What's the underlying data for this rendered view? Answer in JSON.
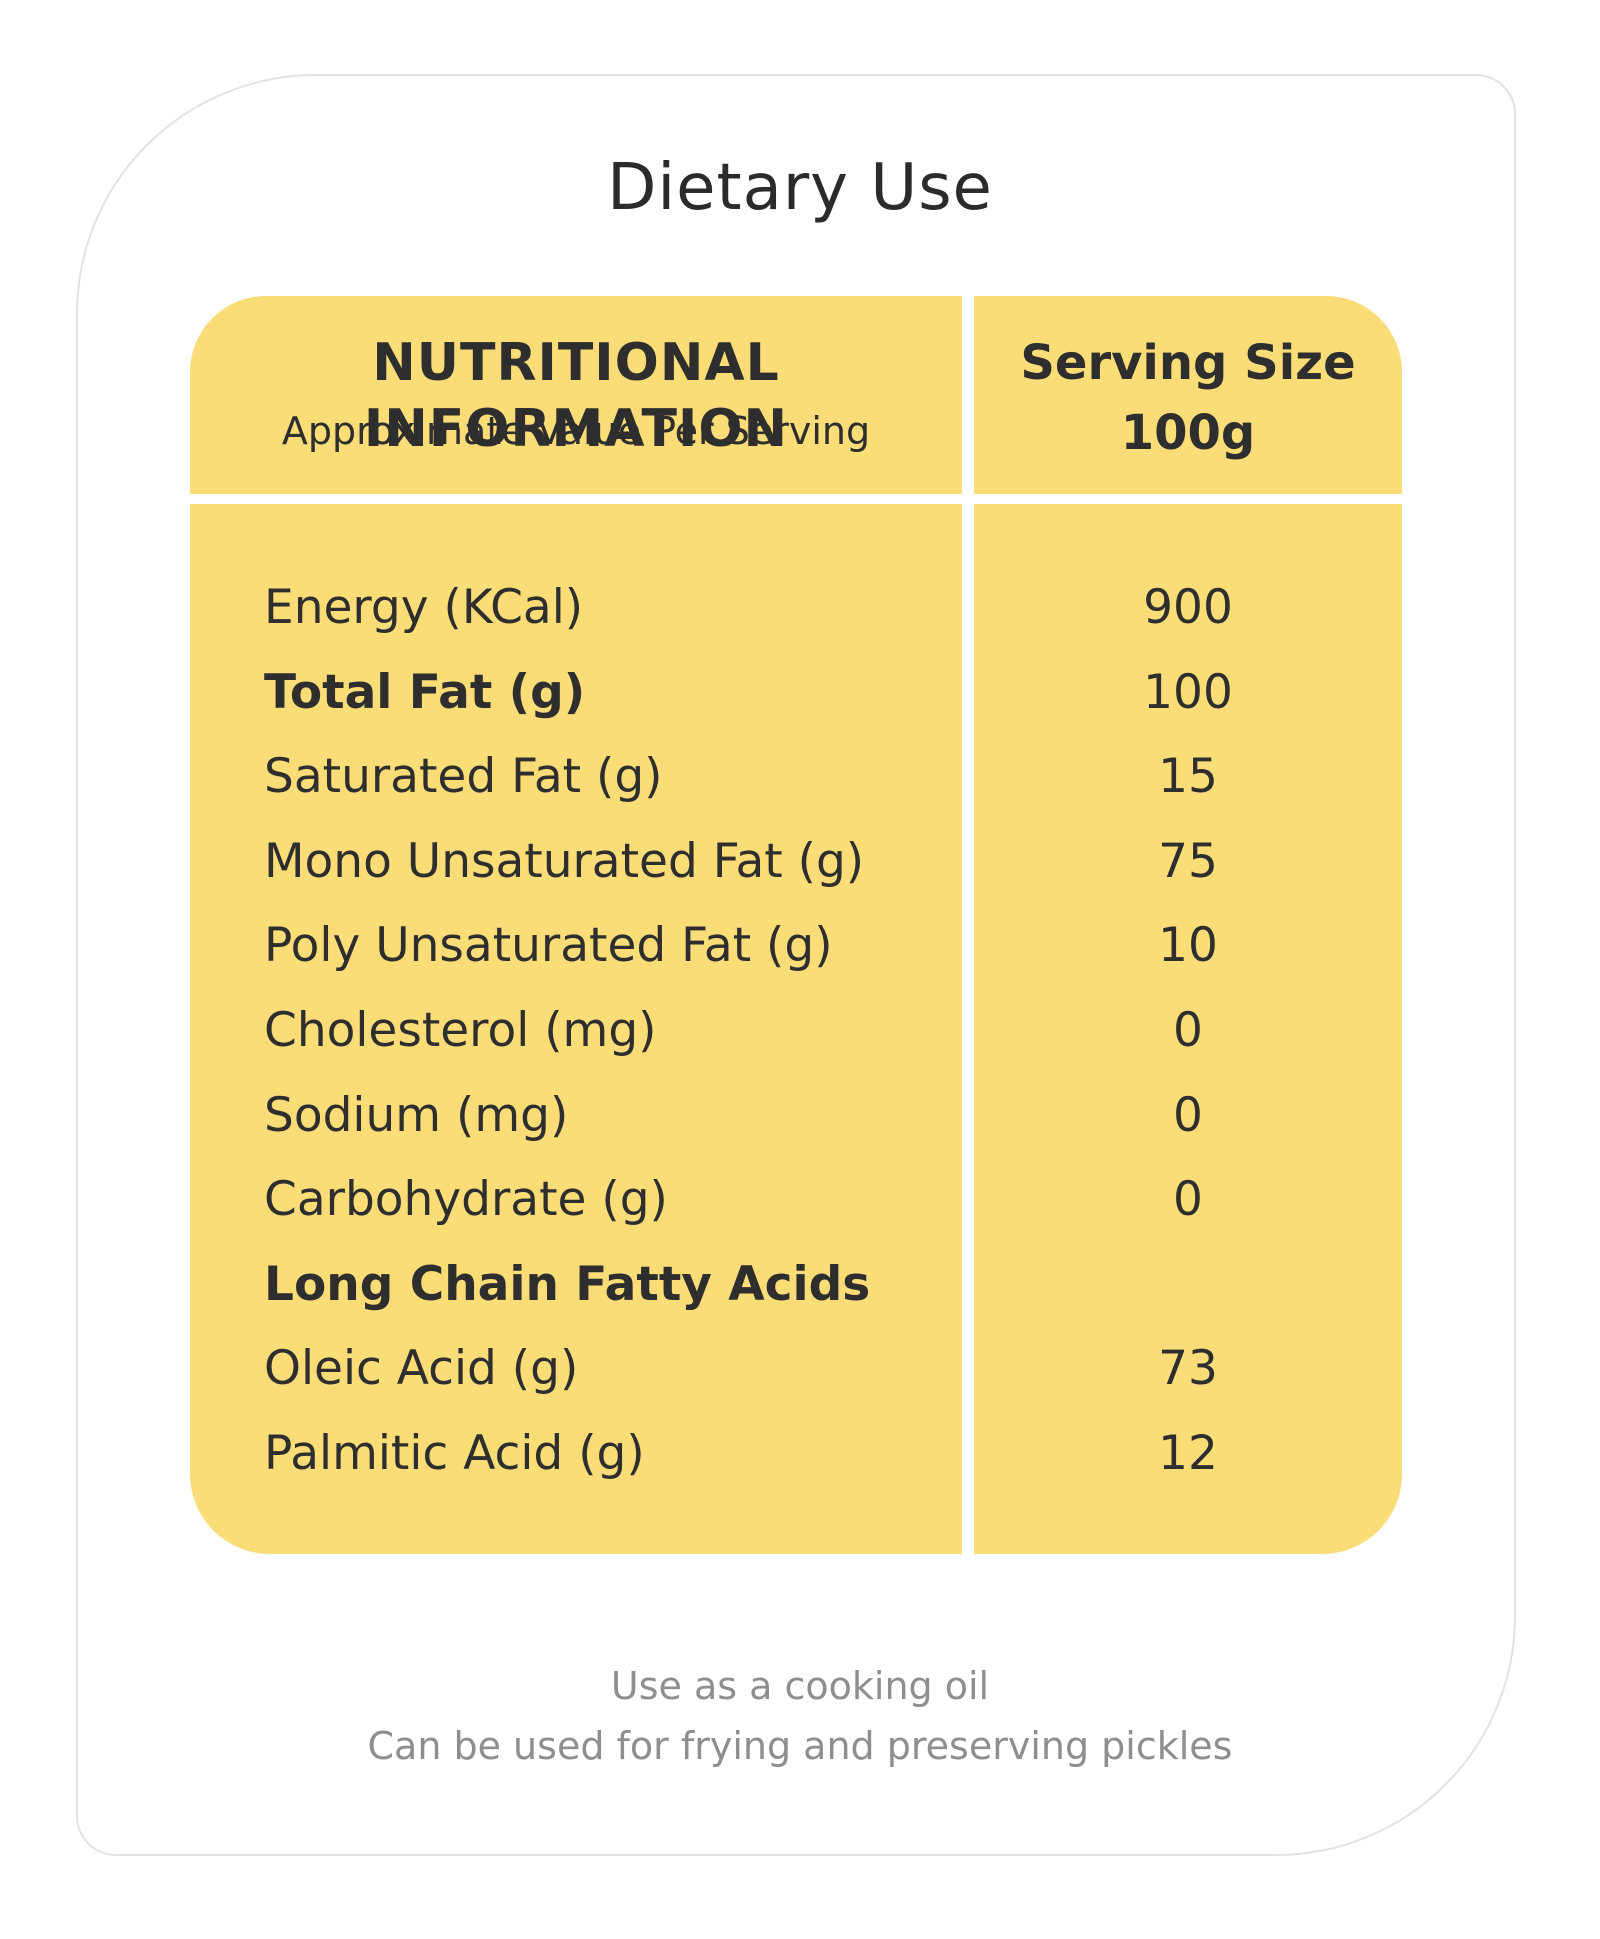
{
  "title": "Dietary Use",
  "header": {
    "left_title": "NUTRITIONAL INFORMATION",
    "left_subtitle": "Approximate Value Per Serving",
    "right_label": "Serving Size",
    "right_value": "100g"
  },
  "rows": [
    {
      "label": "Energy (KCal)",
      "value": "900",
      "bold": false
    },
    {
      "label": "Total Fat (g)",
      "value": "100",
      "bold": true
    },
    {
      "label": "Saturated Fat (g)",
      "value": "15",
      "bold": false
    },
    {
      "label": "Mono Unsaturated Fat (g)",
      "value": "75",
      "bold": false
    },
    {
      "label": "Poly Unsaturated Fat (g)",
      "value": "10",
      "bold": false
    },
    {
      "label": "Cholesterol (mg)",
      "value": "0",
      "bold": false
    },
    {
      "label": "Sodium (mg)",
      "value": "0",
      "bold": false
    },
    {
      "label": "Carbohydrate (g)",
      "value": "0",
      "bold": false
    },
    {
      "label": "Long Chain Fatty Acids",
      "value": "",
      "bold": true
    },
    {
      "label": "Oleic Acid (g)",
      "value": "73",
      "bold": false
    },
    {
      "label": "Palmitic Acid (g)",
      "value": "12",
      "bold": false
    }
  ],
  "notes": {
    "line1": "Use as a cooking oil",
    "line2": "Can be used for frying and preserving pickles"
  },
  "colors": {
    "panel": "#fbdd78",
    "text": "#2e2e2e",
    "note_text": "#8e8e8e",
    "card_border": "#e2e2e2"
  }
}
